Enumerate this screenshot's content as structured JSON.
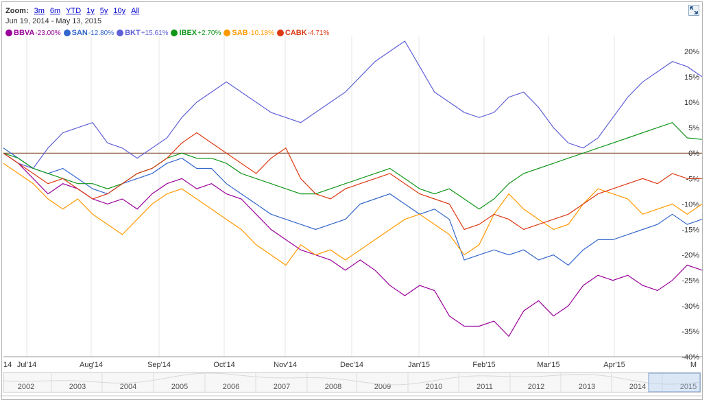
{
  "zoom": {
    "label": "Zoom:",
    "options": [
      "3m",
      "6m",
      "YTD",
      "1y",
      "5y",
      "10y",
      "All"
    ]
  },
  "date_range": {
    "start": "Jun 19, 2014",
    "separator": "-",
    "end": "May 13, 2015"
  },
  "legend": [
    {
      "name": "BBVA",
      "change": "-23.00%",
      "color": "#990099"
    },
    {
      "name": "SAN",
      "change": "-12.80%",
      "color": "#3366cc"
    },
    {
      "name": "BKT",
      "change": "+15.61%",
      "color": "#5f5fd8"
    },
    {
      "name": "IBEX",
      "change": "+2.70%",
      "color": "#109618"
    },
    {
      "name": "SAB",
      "change": "-10.18%",
      "color": "#ff9900"
    },
    {
      "name": "CABK",
      "change": "-4.71%",
      "color": "#dc3912"
    }
  ],
  "x_ticks": [
    "14",
    "Jul'14",
    "Aug'14",
    "Sep'14",
    "Oct'14",
    "Nov'14",
    "Dec'14",
    "Jan'15",
    "Feb'15",
    "Mar'15",
    "Apr'15",
    "M"
  ],
  "navigator_years": [
    "2002",
    "2003",
    "2004",
    "2005",
    "2006",
    "2007",
    "2008",
    "2009",
    "2010",
    "2011",
    "2012",
    "2013",
    "2014",
    "2015"
  ],
  "chart_data": {
    "type": "line",
    "ylim": [
      -40,
      22
    ],
    "y_ticks": [
      "20%",
      "15%",
      "10%",
      "5%",
      "0%",
      "-5%",
      "-10%",
      "-15%",
      "-20%",
      "-25%",
      "-30%",
      "-35%",
      "-40%"
    ],
    "grid": true,
    "x_unit": "trading days from Jun 19, 2014",
    "series": [
      {
        "name": "BBVA",
        "color": "#990099",
        "x": [
          0,
          5,
          10,
          15,
          20,
          25,
          30,
          35,
          40,
          45,
          50,
          55,
          60,
          65,
          70,
          75,
          80,
          85,
          90,
          95,
          100,
          105,
          110,
          115,
          120,
          125,
          130,
          135,
          140,
          145,
          150,
          155,
          160,
          165,
          170,
          175,
          180,
          185,
          190,
          195,
          200,
          205,
          210,
          215,
          220,
          225,
          230,
          235
        ],
        "y": [
          0,
          -2,
          -5,
          -8,
          -6,
          -7,
          -9,
          -10,
          -9,
          -11,
          -8,
          -6,
          -5,
          -7,
          -6,
          -8,
          -9,
          -12,
          -15,
          -17,
          -19,
          -20,
          -21,
          -23,
          -21,
          -23,
          -26,
          -28,
          -26,
          -27,
          -32,
          -34,
          -34,
          -33,
          -36,
          -31,
          -29,
          -32,
          -30,
          -26,
          -24,
          -25,
          -24,
          -26,
          -27,
          -25,
          -22,
          -23
        ]
      },
      {
        "name": "SAN",
        "color": "#3366cc",
        "x": [
          0,
          5,
          10,
          15,
          20,
          25,
          30,
          35,
          40,
          45,
          50,
          55,
          60,
          65,
          70,
          75,
          80,
          85,
          90,
          95,
          100,
          105,
          110,
          115,
          120,
          125,
          130,
          135,
          140,
          145,
          150,
          155,
          160,
          165,
          170,
          175,
          180,
          185,
          190,
          195,
          200,
          205,
          210,
          215,
          220,
          225,
          230,
          235
        ],
        "y": [
          1,
          -1,
          -3,
          -4,
          -3,
          -5,
          -7,
          -8,
          -6,
          -5,
          -4,
          -2,
          -1,
          -3,
          -3,
          -6,
          -8,
          -10,
          -12,
          -13,
          -14,
          -15,
          -14,
          -13,
          -10,
          -9,
          -8,
          -10,
          -12,
          -11,
          -13,
          -21,
          -20,
          -19,
          -20,
          -19,
          -21,
          -20,
          -22,
          -19,
          -17,
          -17,
          -16,
          -15,
          -14,
          -12,
          -14,
          -13
        ]
      },
      {
        "name": "BKT",
        "color": "#5f5fd8",
        "x": [
          0,
          5,
          10,
          15,
          20,
          25,
          30,
          35,
          40,
          45,
          50,
          55,
          60,
          65,
          70,
          75,
          80,
          85,
          90,
          95,
          100,
          105,
          110,
          115,
          120,
          125,
          130,
          135,
          140,
          145,
          150,
          155,
          160,
          165,
          170,
          175,
          180,
          185,
          190,
          195,
          200,
          205,
          210,
          215,
          220,
          225,
          230,
          235
        ],
        "y": [
          0,
          -2,
          -3,
          1,
          4,
          5,
          6,
          2,
          1,
          -1,
          1,
          3,
          7,
          10,
          12,
          14,
          12,
          10,
          8,
          7,
          6,
          8,
          10,
          12,
          15,
          18,
          20,
          22,
          17,
          12,
          10,
          8,
          7,
          8,
          11,
          12,
          9,
          5,
          2,
          1,
          3,
          7,
          11,
          14,
          16,
          18,
          17,
          15
        ]
      },
      {
        "name": "IBEX",
        "color": "#109618",
        "x": [
          0,
          5,
          10,
          15,
          20,
          25,
          30,
          35,
          40,
          45,
          50,
          55,
          60,
          65,
          70,
          75,
          80,
          85,
          90,
          95,
          100,
          105,
          110,
          115,
          120,
          125,
          130,
          135,
          140,
          145,
          150,
          155,
          160,
          165,
          170,
          175,
          180,
          185,
          190,
          195,
          200,
          205,
          210,
          215,
          220,
          225,
          230,
          235
        ],
        "y": [
          0,
          -1,
          -3,
          -4,
          -5,
          -6,
          -6,
          -7,
          -6,
          -4,
          -3,
          -1,
          0,
          -1,
          -1,
          -2,
          -4,
          -5,
          -6,
          -7,
          -8,
          -8,
          -7,
          -6,
          -5,
          -4,
          -3,
          -5,
          -7,
          -8,
          -7,
          -9,
          -11,
          -9,
          -6,
          -4,
          -3,
          -2,
          -1,
          0,
          1,
          2,
          3,
          4,
          5,
          6,
          3,
          2.7
        ]
      },
      {
        "name": "SAB",
        "color": "#ff9900",
        "x": [
          0,
          5,
          10,
          15,
          20,
          25,
          30,
          35,
          40,
          45,
          50,
          55,
          60,
          65,
          70,
          75,
          80,
          85,
          90,
          95,
          100,
          105,
          110,
          115,
          120,
          125,
          130,
          135,
          140,
          145,
          150,
          155,
          160,
          165,
          170,
          175,
          180,
          185,
          190,
          195,
          200,
          205,
          210,
          215,
          220,
          225,
          230,
          235
        ],
        "y": [
          -2,
          -4,
          -6,
          -9,
          -11,
          -9,
          -12,
          -14,
          -16,
          -13,
          -10,
          -8,
          -7,
          -9,
          -11,
          -13,
          -15,
          -18,
          -20,
          -22,
          -18,
          -20,
          -19,
          -21,
          -19,
          -17,
          -15,
          -13,
          -12,
          -14,
          -16,
          -20,
          -18,
          -12,
          -8,
          -11,
          -13,
          -15,
          -14,
          -10,
          -7,
          -8,
          -9,
          -12,
          -11,
          -10,
          -12,
          -10
        ]
      },
      {
        "name": "CABK",
        "color": "#dc3912",
        "x": [
          0,
          5,
          10,
          15,
          20,
          25,
          30,
          35,
          40,
          45,
          50,
          55,
          60,
          65,
          70,
          75,
          80,
          85,
          90,
          95,
          100,
          105,
          110,
          115,
          120,
          125,
          130,
          135,
          140,
          145,
          150,
          155,
          160,
          165,
          170,
          175,
          180,
          185,
          190,
          195,
          200,
          205,
          210,
          215,
          220,
          225,
          230,
          235
        ],
        "y": [
          0,
          -2,
          -4,
          -6,
          -5,
          -7,
          -9,
          -8,
          -6,
          -4,
          -3,
          -1,
          2,
          4,
          2,
          0,
          -2,
          -4,
          -1,
          1,
          -5,
          -8,
          -9,
          -7,
          -6,
          -5,
          -4,
          -6,
          -8,
          -9,
          -10,
          -15,
          -14,
          -12,
          -13,
          -15,
          -14,
          -13,
          -12,
          -10,
          -8,
          -7,
          -6,
          -5,
          -6,
          -4,
          -5,
          -5
        ]
      }
    ]
  }
}
